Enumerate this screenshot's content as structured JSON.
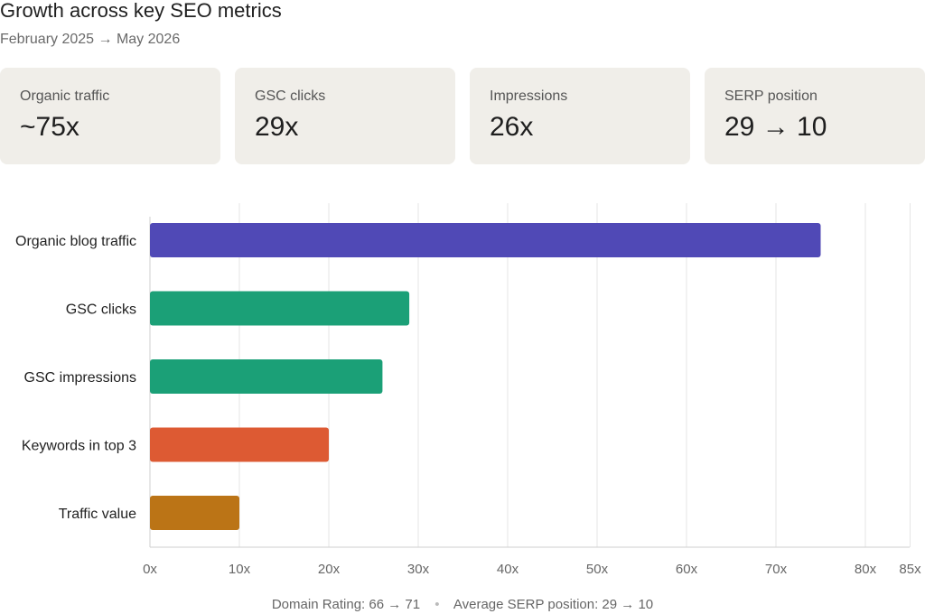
{
  "title": "Growth across key SEO metrics",
  "subtitle": "February 2025 → May 2026",
  "cards": [
    {
      "label": "Organic traffic",
      "value": "~75x"
    },
    {
      "label": "GSC clicks",
      "value": "29x"
    },
    {
      "label": "Impressions",
      "value": "26x"
    },
    {
      "label": "SERP position",
      "value": "29 → 10"
    }
  ],
  "chart_data": {
    "type": "bar",
    "orientation": "horizontal",
    "categories": [
      "Organic blog traffic",
      "GSC clicks",
      "GSC impressions",
      "Keywords in top 3",
      "Traffic value"
    ],
    "values": [
      75,
      29,
      26,
      20,
      10
    ],
    "colors": [
      "#5049b6",
      "#1ba077",
      "#1ba077",
      "#dd5a33",
      "#bb7416"
    ],
    "xlim": [
      0,
      85
    ],
    "xticks": [
      0,
      10,
      20,
      30,
      40,
      50,
      60,
      70,
      80,
      85
    ],
    "xtick_labels": [
      "0x",
      "10x",
      "20x",
      "30x",
      "40x",
      "50x",
      "60x",
      "70x",
      "80x",
      "85x"
    ],
    "grid": "vertical",
    "title": "",
    "xlabel": "",
    "ylabel": ""
  },
  "footer": {
    "left": "Domain Rating: 66 → 71",
    "separator": "•",
    "right": "Average SERP position: 29 → 10"
  }
}
